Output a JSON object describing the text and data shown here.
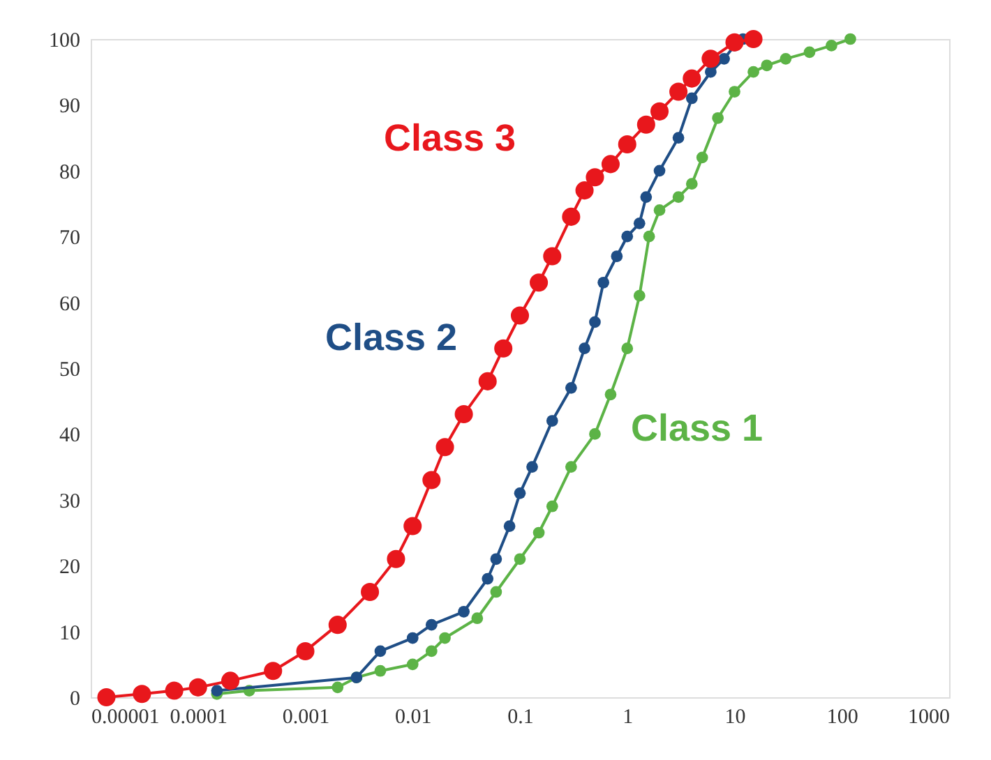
{
  "chart_data": {
    "type": "line",
    "log": "x",
    "marker": "circle",
    "line_style": "solid",
    "grid": false,
    "legend": false,
    "xlim": [
      1e-05,
      1000
    ],
    "xticks": [
      {
        "value": 1e-05,
        "label": "0.00001"
      },
      0.0001,
      0.001,
      0.01,
      0.1,
      1,
      10,
      100,
      1000
    ],
    "ylim": [
      0,
      100
    ],
    "yticks": [
      0,
      10,
      20,
      30,
      40,
      50,
      60,
      70,
      80,
      90,
      100
    ],
    "series": [
      {
        "name": "Class 1",
        "color": "#5cb346",
        "x": [
          0.00015,
          0.0003,
          0.002,
          0.003,
          0.005,
          0.01,
          0.015,
          0.02,
          0.04,
          0.06,
          0.1,
          0.15,
          0.2,
          0.3,
          0.5,
          0.7,
          1,
          1.3,
          1.6,
          2,
          3,
          4,
          5,
          7,
          10,
          15,
          20,
          30,
          50,
          80,
          120
        ],
        "values": [
          0.5,
          1,
          1.5,
          3,
          4,
          5,
          7,
          9,
          12,
          16,
          21,
          25,
          29,
          35,
          40,
          46,
          53,
          61,
          70,
          74,
          76,
          78,
          82,
          88,
          92,
          95,
          96,
          97,
          98,
          99,
          100
        ]
      },
      {
        "name": "Class 2",
        "color": "#1f4e86",
        "x": [
          0.00015,
          0.003,
          0.005,
          0.01,
          0.015,
          0.03,
          0.05,
          0.06,
          0.08,
          0.1,
          0.13,
          0.2,
          0.3,
          0.4,
          0.5,
          0.6,
          0.8,
          1,
          1.3,
          1.5,
          2,
          3,
          4,
          6,
          8,
          10,
          12
        ],
        "values": [
          1,
          3,
          7,
          9,
          11,
          13,
          18,
          21,
          26,
          31,
          35,
          42,
          47,
          53,
          57,
          63,
          67,
          70,
          72,
          76,
          80,
          85,
          91,
          95,
          97,
          99,
          100
        ]
      },
      {
        "name": "Class 3",
        "color": "#e8171c",
        "x": [
          1.4e-05,
          3e-05,
          6e-05,
          0.0001,
          0.0002,
          0.0005,
          0.001,
          0.002,
          0.004,
          0.007,
          0.01,
          0.015,
          0.02,
          0.03,
          0.05,
          0.07,
          0.1,
          0.15,
          0.2,
          0.3,
          0.4,
          0.5,
          0.7,
          1,
          1.5,
          2,
          3,
          4,
          6,
          10,
          15
        ],
        "values": [
          0,
          0.5,
          1,
          1.5,
          2.5,
          4,
          7,
          11,
          16,
          21,
          26,
          33,
          38,
          43,
          48,
          53,
          58,
          63,
          67,
          73,
          77,
          79,
          81,
          84,
          87,
          89,
          92,
          94,
          97,
          99.5,
          100
        ]
      }
    ]
  }
}
